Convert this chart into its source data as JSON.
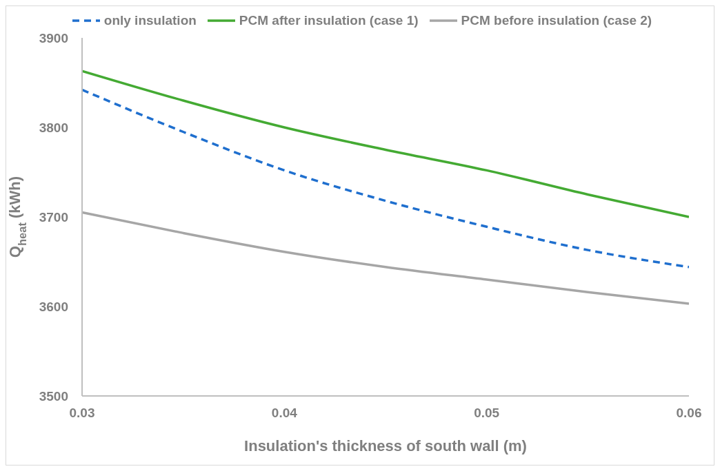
{
  "chart_data": {
    "type": "line",
    "xlabel": "Insulation's thickness of south wall (m)",
    "ylabel": "Q$_{heat}$ (kWh)",
    "x": [
      0.03,
      0.035,
      0.04,
      0.045,
      0.05,
      0.055,
      0.06
    ],
    "series": [
      {
        "name": "only insulation",
        "color": "#1f6fce",
        "line_style": "dashed",
        "values": [
          3842,
          3795,
          3752,
          3718,
          3689,
          3663,
          3644
        ]
      },
      {
        "name": "PCM after insulation (case 1)",
        "color": "#44aa33",
        "values": [
          3863,
          3830,
          3800,
          3775,
          3752,
          3725,
          3700
        ]
      },
      {
        "name": "PCM before insulation (case 2)",
        "color": "#a6a6a6",
        "values": [
          3705,
          3682,
          3661,
          3644,
          3630,
          3616,
          3603
        ]
      }
    ],
    "xlim": [
      0.03,
      0.06
    ],
    "xticks": [
      0.03,
      0.04,
      0.05,
      0.06
    ],
    "ylim": [
      3500,
      3900
    ],
    "yticks": [
      3500,
      3600,
      3700,
      3800,
      3900
    ],
    "grid": false,
    "legend": "top",
    "marker": "none",
    "line_style": "solid"
  }
}
